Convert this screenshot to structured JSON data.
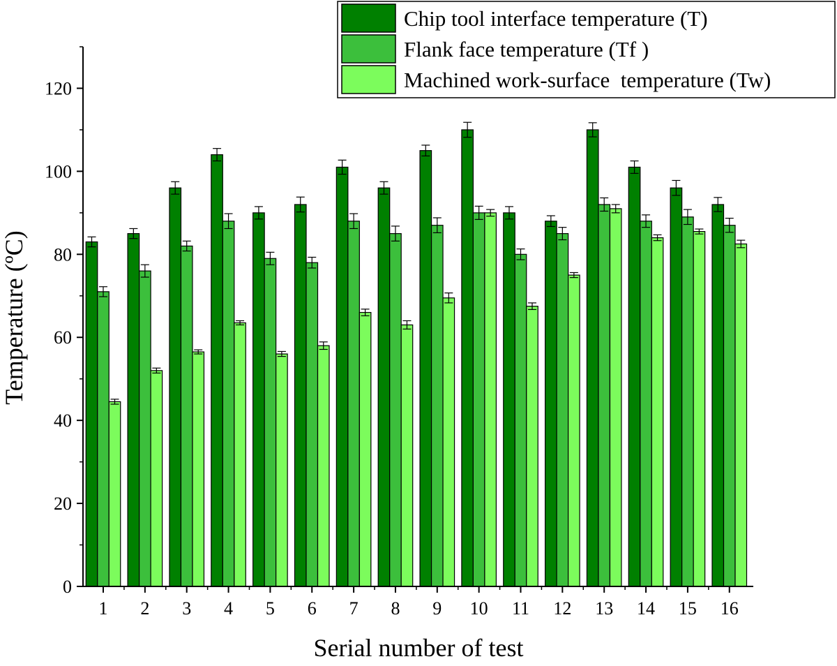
{
  "chart_data": {
    "type": "bar",
    "title": "",
    "xlabel": "Serial number of test",
    "ylabel": "Temperature (ºC)",
    "ylim": [
      0,
      130
    ],
    "yticks": [
      0,
      20,
      40,
      60,
      80,
      100,
      120
    ],
    "categories": [
      "1",
      "2",
      "3",
      "4",
      "5",
      "6",
      "7",
      "8",
      "9",
      "10",
      "11",
      "12",
      "13",
      "14",
      "15",
      "16"
    ],
    "legend_position": "top-right",
    "series": [
      {
        "name": "Chip tool interface temperature (T)",
        "color": "#008000",
        "values": [
          83,
          85,
          96,
          104,
          90,
          92,
          101,
          96,
          105,
          110,
          90,
          88,
          110,
          101,
          96,
          92
        ],
        "errors": [
          1.2,
          1.2,
          1.5,
          1.5,
          1.5,
          1.8,
          1.7,
          1.5,
          1.3,
          1.8,
          1.5,
          1.3,
          1.7,
          1.5,
          1.8,
          1.7
        ]
      },
      {
        "name": "Flank face temperature (Tf )",
        "color": "#3cbf3c",
        "values": [
          71,
          76,
          82,
          88,
          79,
          78,
          88,
          85,
          87,
          90,
          80,
          85,
          92,
          88,
          89,
          87
        ],
        "errors": [
          1.2,
          1.5,
          1.2,
          1.8,
          1.5,
          1.3,
          1.8,
          1.8,
          1.8,
          1.6,
          1.3,
          1.5,
          1.6,
          1.5,
          1.8,
          1.7
        ]
      },
      {
        "name": "Machined work-surface  temperature (Tw)",
        "color": "#7cfc5c",
        "values": [
          44.5,
          52,
          56.5,
          63.5,
          56,
          58,
          66,
          63,
          69.5,
          90,
          67.5,
          75,
          91,
          84,
          85.5,
          82.5
        ],
        "errors": [
          0.6,
          0.6,
          0.5,
          0.5,
          0.6,
          0.9,
          0.8,
          1.0,
          1.2,
          0.8,
          0.8,
          0.6,
          1.0,
          0.7,
          0.6,
          0.9
        ]
      }
    ]
  }
}
